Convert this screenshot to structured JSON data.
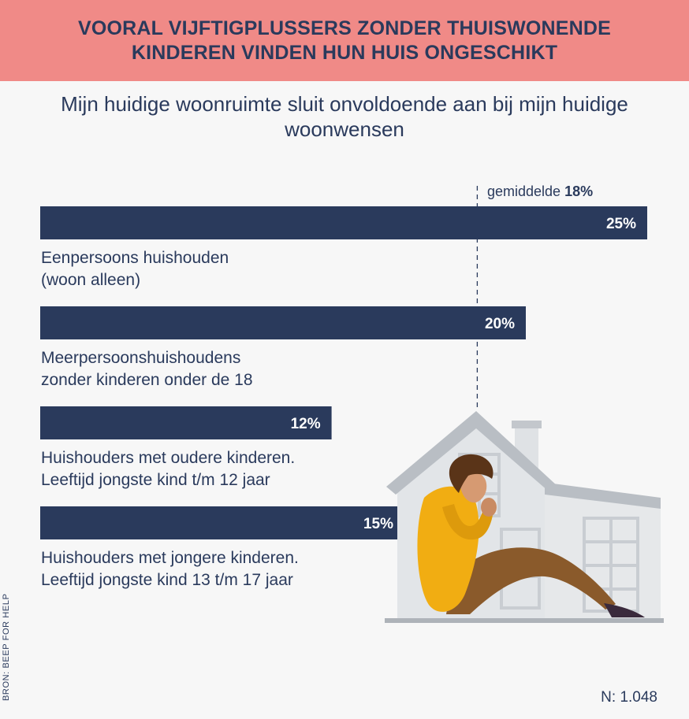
{
  "header": {
    "title": "VOORAL VIJFTIGPLUSSERS ZONDER THUISWONENDE KINDEREN VINDEN HUN HUIS ONGESCHIKT"
  },
  "footer": {
    "source": "BRON: BEEP FOR HELP",
    "sample": "N: 1.048"
  },
  "colors": {
    "bar": "#2a3a5c",
    "banner": "#f08a87",
    "text": "#2a3a5c"
  },
  "chart_data": {
    "type": "bar",
    "orientation": "horizontal",
    "title": "Mijn huidige woonruimte sluit onvoldoende aan bij mijn huidige woonwensen",
    "categories": [
      [
        "Eenpersoons huishouden",
        "(woon alleen)"
      ],
      [
        "Meerpersoonshuishoudens",
        "zonder kinderen onder de 18"
      ],
      [
        "Huishouders met oudere kinderen.",
        "Leeftijd jongste kind t/m 12 jaar"
      ],
      [
        "Huishouders met jongere kinderen.",
        "Leeftijd jongste kind 13 t/m 17 jaar"
      ]
    ],
    "values": [
      25,
      20,
      12,
      15
    ],
    "value_labels": [
      "25%",
      "20%",
      "12%",
      "15%"
    ],
    "unit": "%",
    "reference_line": {
      "label": "gemiddelde",
      "value": 18,
      "value_label": "18%",
      "style": "dashed"
    },
    "grid": false,
    "legend": "none"
  }
}
